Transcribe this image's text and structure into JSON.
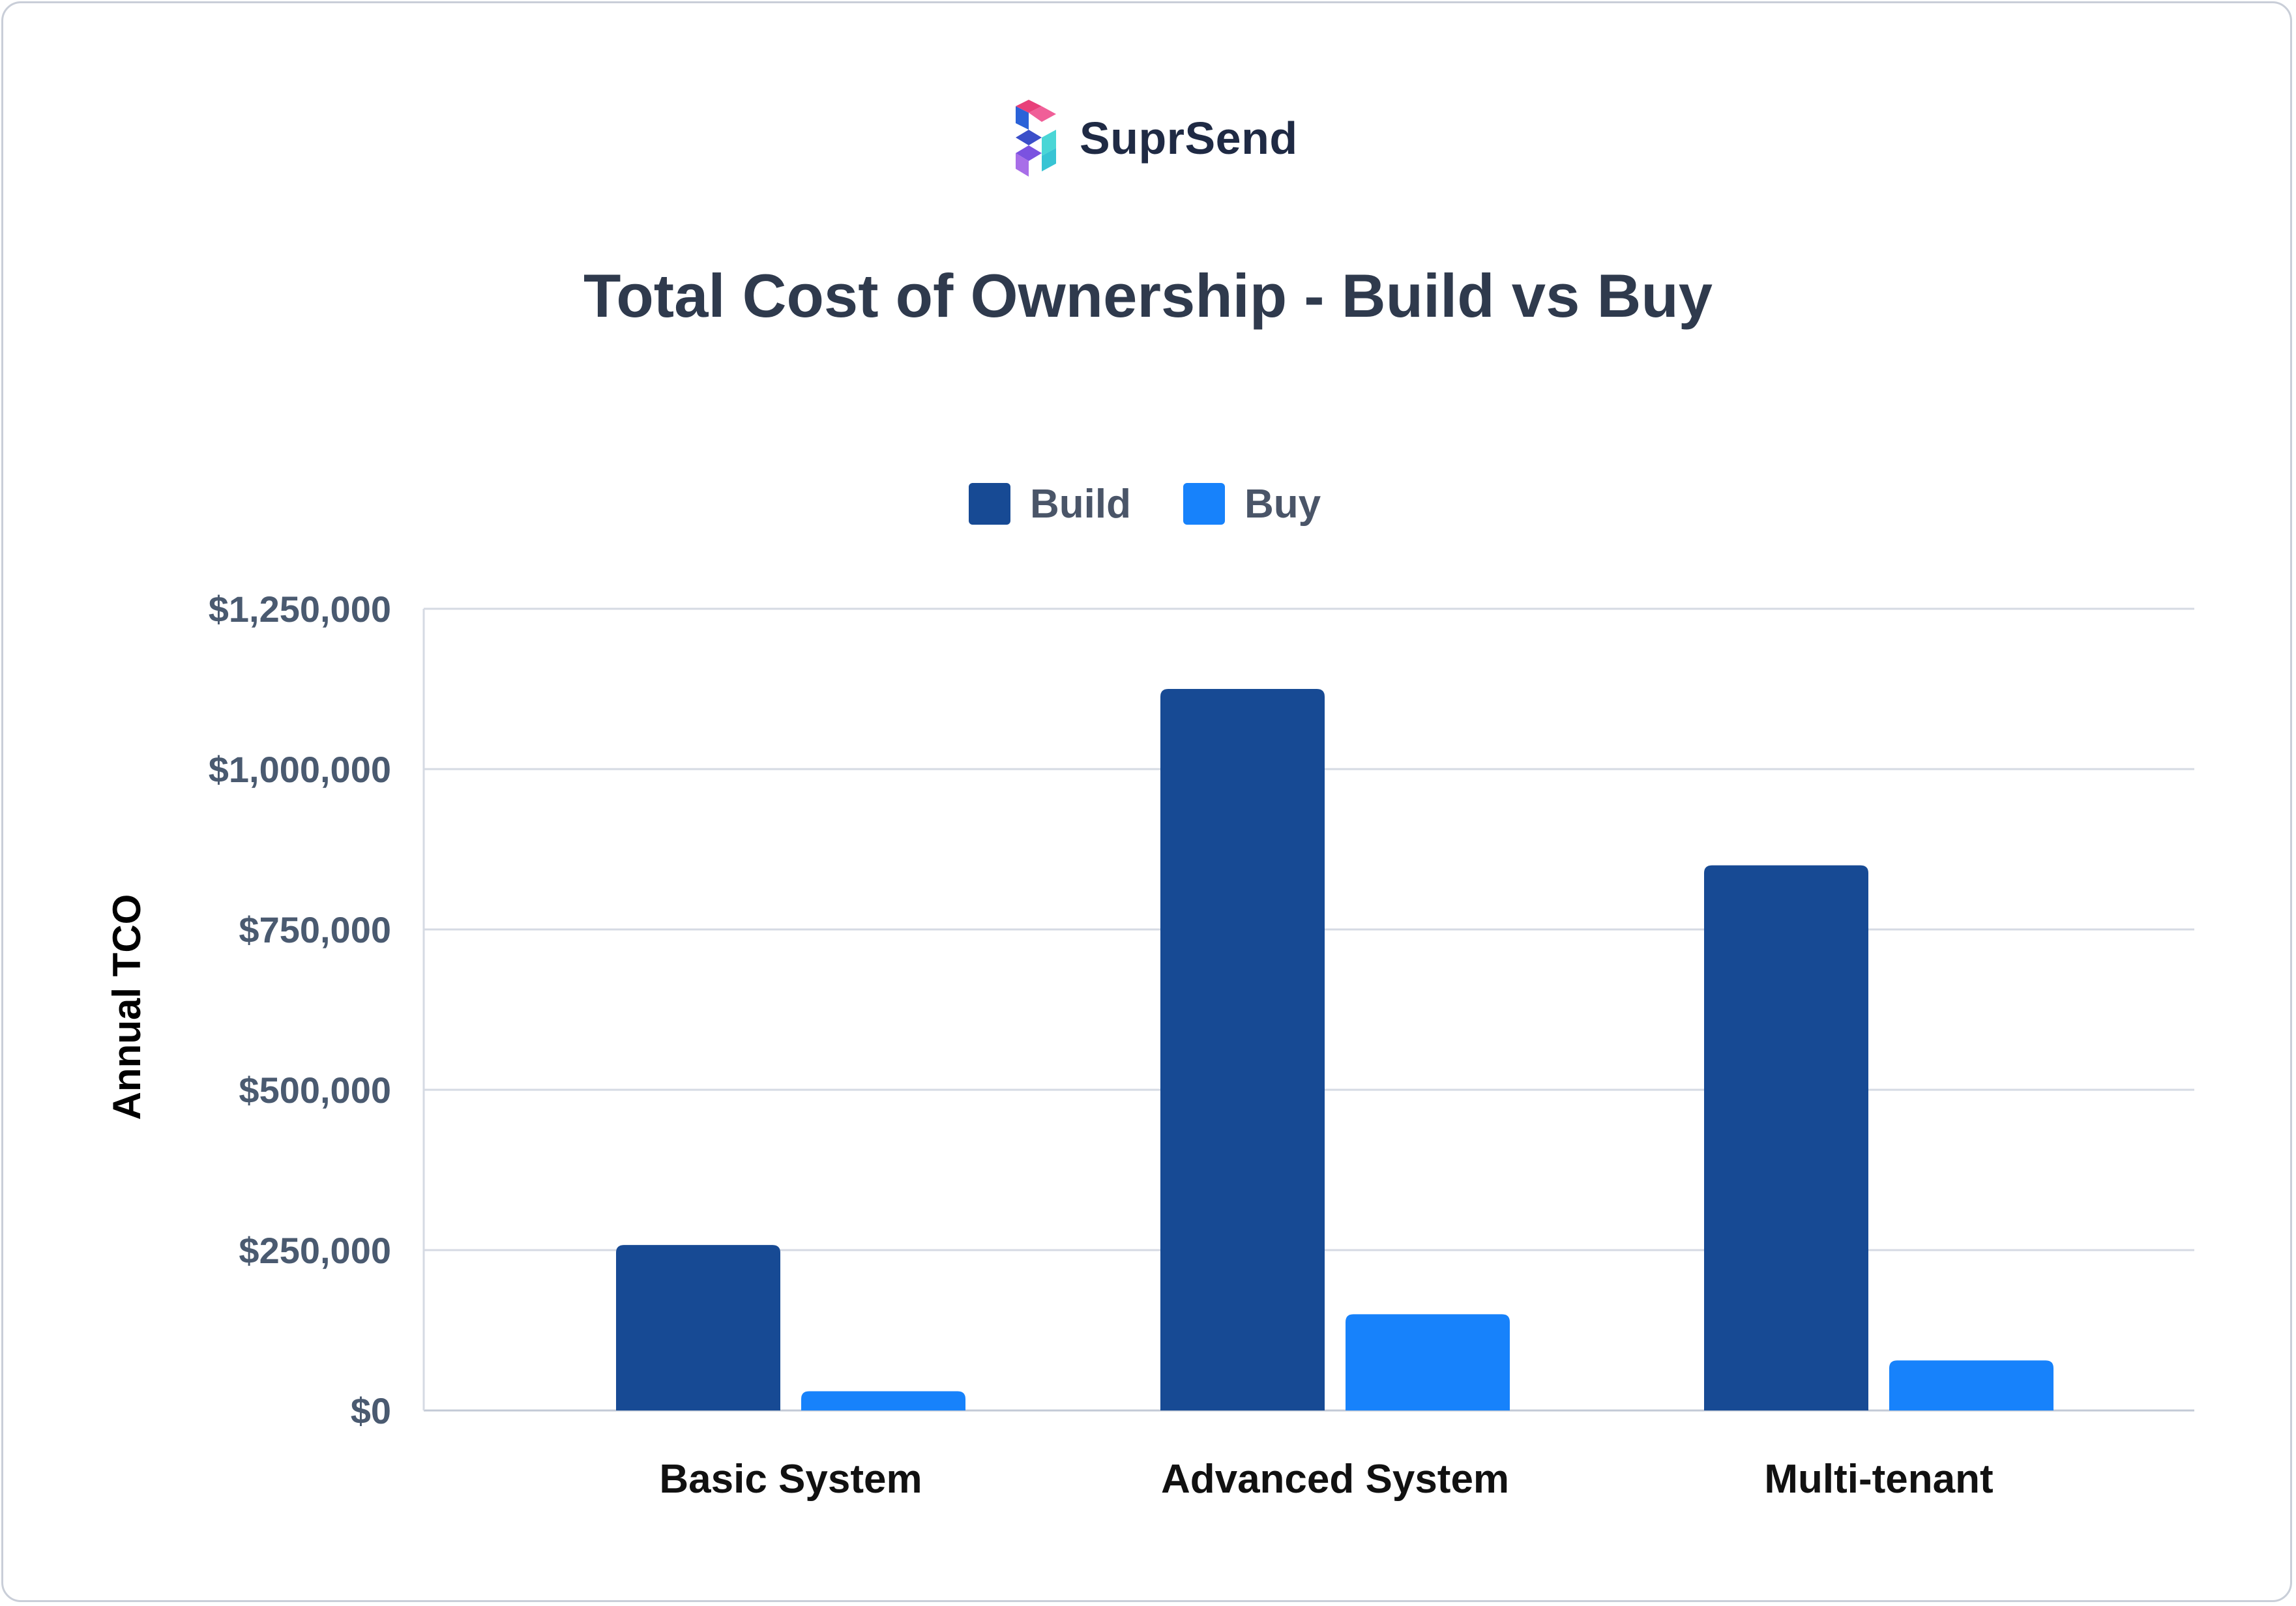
{
  "brand": {
    "name": "SuprSend",
    "icon": "suprsend-logo-icon"
  },
  "chart_data": {
    "type": "bar",
    "title": "Total Cost of Ownership - Build vs Buy",
    "xlabel": "",
    "ylabel": "Annual TCO",
    "categories": [
      "Basic System",
      "Advanced System",
      "Multi-tenant"
    ],
    "series": [
      {
        "name": "Build",
        "color": "#174a94",
        "values": [
          258000,
          1125000,
          850000
        ]
      },
      {
        "name": "Buy",
        "color": "#1782fb",
        "values": [
          30000,
          150000,
          78000
        ]
      }
    ],
    "ylim": [
      0,
      1250000
    ],
    "yticks": [
      {
        "value": 0,
        "label": "$0"
      },
      {
        "value": 250000,
        "label": "$250,000"
      },
      {
        "value": 500000,
        "label": "$500,000"
      },
      {
        "value": 750000,
        "label": "$750,000"
      },
      {
        "value": 1000000,
        "label": "$1,000,000"
      },
      {
        "value": 1250000,
        "label": "$1,250,000"
      }
    ],
    "grid": true,
    "legend": "top-center"
  }
}
